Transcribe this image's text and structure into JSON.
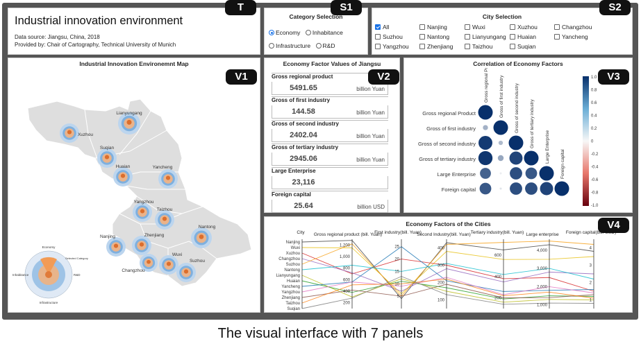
{
  "badges": {
    "t": "T",
    "s1": "S1",
    "s2": "S2",
    "v1": "V1",
    "v2": "V2",
    "v3": "V3",
    "v4": "V4"
  },
  "header": {
    "title": "Industrial innovation environment",
    "source": "Data source: Jiangsu, China, 2018",
    "provider": "Provided by: Chair of Cartography, Technical University of Munich"
  },
  "category_selection": {
    "title": "Category Selection",
    "options": [
      "Economy",
      "Inhabitance",
      "Infrastructure",
      "R&D"
    ],
    "selected": "Economy"
  },
  "city_selection": {
    "title": "City Selection",
    "cities": [
      "All",
      "Nanjing",
      "Wuxi",
      "Xuzhou",
      "Changzhou",
      "Suzhou",
      "Nantong",
      "Lianyungang",
      "Huaian",
      "Yancheng",
      "Yangzhou",
      "Zhenjiang",
      "Taizhou",
      "Suqian"
    ],
    "checked": [
      "All"
    ]
  },
  "map": {
    "title": "Industrial Innovation Environemnt Map",
    "cities": [
      "Lianyungang",
      "Xuzhou",
      "Suqian",
      "Huaian",
      "Yancheng",
      "Yangzhou",
      "Taizhou",
      "Nantong",
      "Nanjing",
      "Zhenjiang",
      "Changzhou",
      "Wuxi",
      "Suzhou"
    ],
    "legend": {
      "economy": "Economy",
      "selected": "Selected Category",
      "inhabitance": "Inhabitance",
      "rd": "R&D",
      "infrastructure": "Infrastructure"
    }
  },
  "factors": {
    "title": "Economy Factor Values of Jiangsu",
    "items": [
      {
        "label": "Gross regional product",
        "value": "5491.65",
        "unit": "billion Yuan"
      },
      {
        "label": "Gross of first industry",
        "value": "144.58",
        "unit": "billion Yuan"
      },
      {
        "label": "Gross of second industry",
        "value": "2402.04",
        "unit": "billion Yuan"
      },
      {
        "label": "Gross of tertiary industry",
        "value": "2945.06",
        "unit": "billion Yuan"
      },
      {
        "label": "Large Enterprise",
        "value": "23,116",
        "unit": ""
      },
      {
        "label": "Foreign capital",
        "value": "25.64",
        "unit": "billion USD"
      }
    ]
  },
  "correlation": {
    "title": "Correlation of Economy Factors",
    "factors": [
      "Gross regional Product",
      "Gross of first industry",
      "Gross of second industry",
      "Gross of tertiary industry",
      "Large Enterprise",
      "Foreign capital"
    ],
    "col_labels": [
      "Gross regional Product",
      "Gross of first industry",
      "Gross of second industry",
      "Gross of tertiary industry",
      "Large Enterprise",
      "Foreign capital"
    ],
    "matrix": [
      [
        1.0
      ],
      [
        0.35,
        1.0
      ],
      [
        0.95,
        0.3,
        1.0
      ],
      [
        0.97,
        0.4,
        0.9,
        1.0
      ],
      [
        0.75,
        0.05,
        0.85,
        0.8,
        1.0
      ],
      [
        0.8,
        0.1,
        0.85,
        0.85,
        0.9,
        1.0
      ]
    ],
    "colorbar_ticks": [
      "1.0",
      "0.8",
      "0.6",
      "0.4",
      "0.2",
      "0",
      "-0.2",
      "-0.4",
      "-0.6",
      "-0.8",
      "-1.0"
    ]
  },
  "parallel": {
    "title": "Economy Factors of the Cities",
    "axes": [
      {
        "label": "City",
        "ticks": [
          "Nanjing",
          "Wuxi",
          "Xuzhou",
          "Changzhou",
          "Suzhou",
          "Nantong",
          "Lianyungang",
          "Huaian",
          "Yancheng",
          "Yangzhou",
          "Zhenjiang",
          "Taizhou",
          "Suqian"
        ]
      },
      {
        "label": "Gross regional product (bill. Yuan)",
        "ticks": [
          "1,200",
          "1,000",
          "800",
          "600",
          "400",
          "200"
        ],
        "min": 100,
        "max": 1300
      },
      {
        "label": "First industry(bill. Yuan)",
        "ticks": [
          "25",
          "20",
          "15",
          "10",
          "5"
        ],
        "min": 0,
        "max": 28
      },
      {
        "label": "Second Industry(bill. Yuan)",
        "ticks": [
          "400",
          "300",
          "200",
          "100"
        ],
        "min": 50,
        "max": 450
      },
      {
        "label": "Tertiary industry(bill. Yuan)",
        "ticks": [
          "600",
          "400",
          "200"
        ],
        "min": 100,
        "max": 750
      },
      {
        "label": "Large enterprise",
        "ticks": [
          "4,000",
          "3,000",
          "2,000",
          "1,000"
        ],
        "min": 800,
        "max": 4600
      },
      {
        "label": "Foreign capital(bill. USD)",
        "ticks": [
          "4",
          "3",
          "2",
          "1"
        ],
        "min": 0.5,
        "max": 4.5
      }
    ],
    "lines": [
      {
        "city": "Nanjing",
        "values": [
          1280,
          4,
          430,
          650,
          4300,
          3.8
        ],
        "color": "#444444"
      },
      {
        "city": "Wuxi",
        "values": [
          1150,
          6,
          380,
          560,
          3500,
          3.5
        ],
        "color": "#e8c21a"
      },
      {
        "city": "Xuzhou",
        "values": [
          700,
          20,
          300,
          380,
          2500,
          1.5
        ],
        "color": "#d62728"
      },
      {
        "city": "Changzhou",
        "values": [
          720,
          7,
          280,
          350,
          2800,
          2.5
        ],
        "color": "#9467bd"
      },
      {
        "city": "Suzhou",
        "values": [
          1220,
          5,
          420,
          720,
          4500,
          4.2
        ],
        "color": "#f7a21b"
      },
      {
        "city": "Nantong",
        "values": [
          850,
          15,
          310,
          420,
          3000,
          2.2
        ],
        "color": "#17becf"
      },
      {
        "city": "Lianyungang",
        "values": [
          300,
          12,
          150,
          160,
          1300,
          1.0
        ],
        "color": "#bcbd22"
      },
      {
        "city": "Huaian",
        "values": [
          380,
          11,
          170,
          190,
          1500,
          1.2
        ],
        "color": "#2ca02c"
      },
      {
        "city": "Yancheng",
        "values": [
          560,
          25,
          210,
          260,
          1800,
          1.6
        ],
        "color": "#1f77b4"
      },
      {
        "city": "Yangzhou",
        "values": [
          560,
          9,
          230,
          230,
          2000,
          1.4
        ],
        "color": "#e377c2"
      },
      {
        "city": "Zhenjiang",
        "values": [
          420,
          5,
          190,
          200,
          1400,
          1.3
        ],
        "color": "#8c564b"
      },
      {
        "city": "Taizhou",
        "values": [
          510,
          10,
          220,
          220,
          1700,
          1.1
        ],
        "color": "#ff7f0e"
      },
      {
        "city": "Suqian",
        "values": [
          280,
          13,
          130,
          140,
          1100,
          0.8
        ],
        "color": "#7f7f7f"
      }
    ]
  },
  "caption": "The visual interface with 7 panels"
}
